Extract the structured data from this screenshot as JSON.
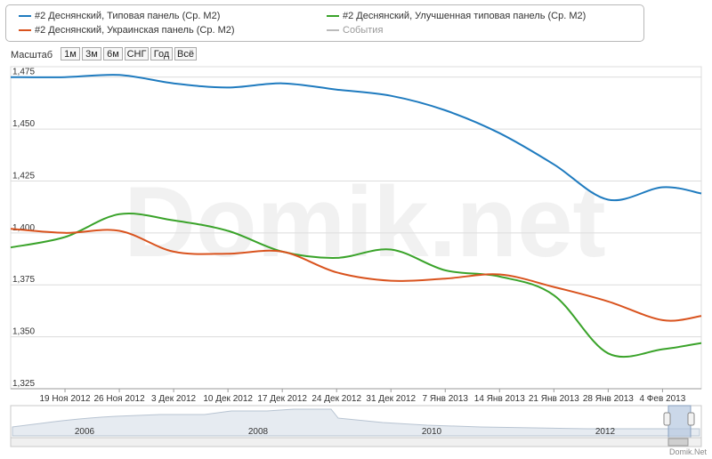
{
  "legend": [
    {
      "label": "#2 Деснянский, Типовая панель (Ср. М2)",
      "color": "#1f7bbf"
    },
    {
      "label": "#2 Деснянский, Улучшенная типовая панель (Ср. М2)",
      "color": "#3aa32a"
    },
    {
      "label": "#2 Деснянский, Украинская панель (Ср. М2)",
      "color": "#d9531e"
    },
    {
      "label": "События",
      "color": "#bbbbbb"
    }
  ],
  "zoom": {
    "label": "Масштаб",
    "buttons": [
      "1м",
      "3м",
      "6м",
      "СНГ",
      "Год",
      "Всё"
    ]
  },
  "watermark": "Domik.net",
  "credit": "Domik.Net",
  "chart_data": {
    "type": "line",
    "title": "",
    "xlabel": "",
    "ylabel": "",
    "ylim": [
      1325,
      1480
    ],
    "y_ticks": [
      "1,325",
      "1,350",
      "1,375",
      "1,400",
      "1,425",
      "1,450",
      "1,475"
    ],
    "y_tick_values": [
      1325,
      1350,
      1375,
      1400,
      1425,
      1450,
      1475
    ],
    "x_ticks": [
      "19 Ноя 2012",
      "26 Ноя 2012",
      "3 Дек 2012",
      "10 Дек 2012",
      "17 Дек 2012",
      "24 Дек 2012",
      "31 Дек 2012",
      "7 Янв 2013",
      "14 Янв 2013",
      "21 Янв 2013",
      "28 Янв 2013",
      "4 Фев 2013"
    ],
    "x_range": [
      "2012-11-12",
      "2013-02-09"
    ],
    "x_tick_dates": [
      "2012-11-19",
      "2012-11-26",
      "2012-12-03",
      "2012-12-10",
      "2012-12-17",
      "2012-12-24",
      "2012-12-31",
      "2013-01-07",
      "2013-01-14",
      "2013-01-21",
      "2013-01-28",
      "2013-02-04"
    ],
    "series": [
      {
        "name": "#2 Деснянский, Типовая панель (Ср. М2)",
        "color": "#1f7bbf",
        "points": [
          [
            "2012-11-12",
            1475
          ],
          [
            "2012-11-19",
            1475
          ],
          [
            "2012-11-26",
            1476
          ],
          [
            "2012-12-03",
            1472
          ],
          [
            "2012-12-10",
            1470
          ],
          [
            "2012-12-17",
            1472
          ],
          [
            "2012-12-24",
            1469
          ],
          [
            "2012-12-31",
            1466
          ],
          [
            "2013-01-07",
            1459
          ],
          [
            "2013-01-14",
            1448
          ],
          [
            "2013-01-21",
            1433
          ],
          [
            "2013-01-28",
            1416
          ],
          [
            "2013-02-04",
            1422
          ],
          [
            "2013-02-09",
            1419
          ]
        ]
      },
      {
        "name": "#2 Деснянский, Улучшенная типовая панель (Ср. М2)",
        "color": "#3aa32a",
        "points": [
          [
            "2012-11-12",
            1393
          ],
          [
            "2012-11-19",
            1398
          ],
          [
            "2012-11-26",
            1409
          ],
          [
            "2012-12-03",
            1406
          ],
          [
            "2012-12-10",
            1401
          ],
          [
            "2012-12-17",
            1391
          ],
          [
            "2012-12-24",
            1388
          ],
          [
            "2012-12-31",
            1392
          ],
          [
            "2013-01-07",
            1382
          ],
          [
            "2013-01-14",
            1379
          ],
          [
            "2013-01-21",
            1370
          ],
          [
            "2013-01-28",
            1342
          ],
          [
            "2013-02-04",
            1344
          ],
          [
            "2013-02-09",
            1347
          ]
        ]
      },
      {
        "name": "#2 Деснянский, Украинская панель (Ср. М2)",
        "color": "#d9531e",
        "points": [
          [
            "2012-11-12",
            1402
          ],
          [
            "2012-11-19",
            1400
          ],
          [
            "2012-11-26",
            1401
          ],
          [
            "2012-12-03",
            1391
          ],
          [
            "2012-12-10",
            1390
          ],
          [
            "2012-12-17",
            1391
          ],
          [
            "2012-12-24",
            1381
          ],
          [
            "2012-12-31",
            1377
          ],
          [
            "2013-01-07",
            1378
          ],
          [
            "2013-01-14",
            1380
          ],
          [
            "2013-01-21",
            1374
          ],
          [
            "2013-01-28",
            1367
          ],
          [
            "2013-02-04",
            1358
          ],
          [
            "2013-02-09",
            1360
          ]
        ]
      }
    ],
    "navigator": {
      "labels": [
        "2006",
        "2008",
        "2010",
        "2012"
      ]
    }
  }
}
